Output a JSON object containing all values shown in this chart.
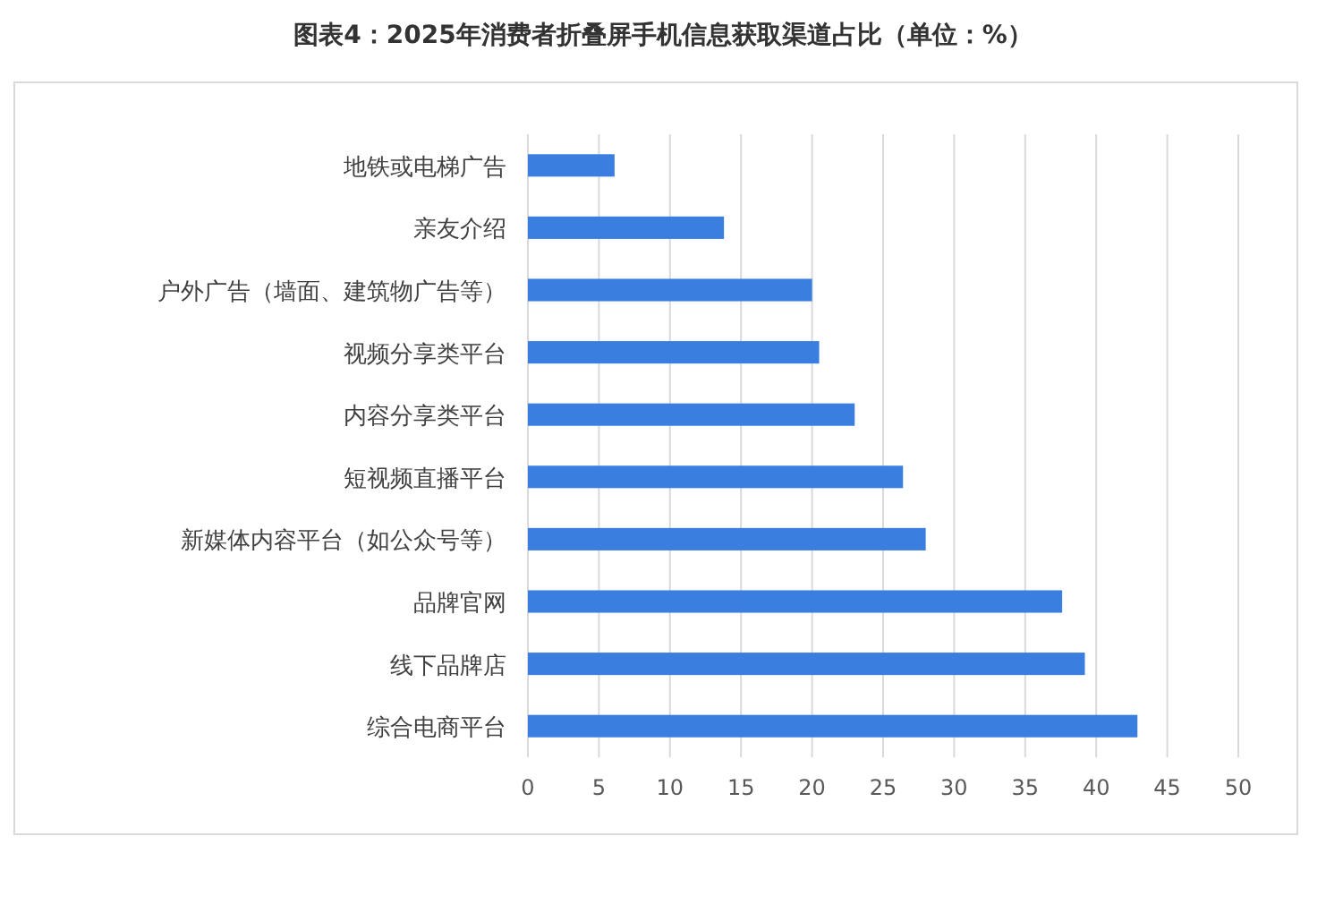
{
  "chart_data": {
    "type": "bar",
    "orientation": "horizontal",
    "title": "图表4：2025年消费者折叠屏手机信息获取渠道占比（单位：%）",
    "categories": [
      "地铁或电梯广告",
      "亲友介绍",
      "户外广告（墙面、建筑物广告等）",
      "视频分享类平台",
      "内容分享类平台",
      "短视频直播平台",
      "新媒体内容平台（如公众号等）",
      "品牌官网",
      "线下品牌店",
      "综合电商平台"
    ],
    "values": [
      6.1,
      13.8,
      20.0,
      20.5,
      23.0,
      26.4,
      28.0,
      37.6,
      39.2,
      42.9
    ],
    "color": "#3a7fe0",
    "xlim": [
      0,
      50
    ],
    "xticks": [
      0,
      5,
      10,
      15,
      20,
      25,
      30,
      35,
      40,
      45,
      50
    ],
    "grid": "x"
  }
}
